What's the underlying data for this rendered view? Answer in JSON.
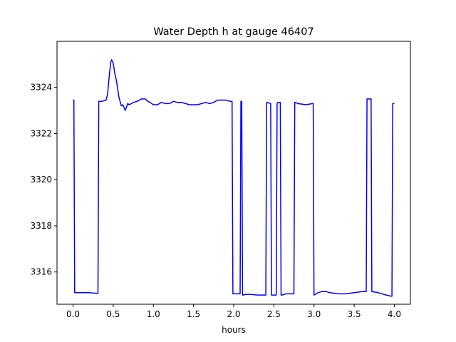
{
  "chart_data": {
    "type": "line",
    "title": "Water Depth h at gauge 46407",
    "xlabel": "hours",
    "ylabel": "",
    "xlim": [
      -0.2,
      4.2
    ],
    "ylim": [
      3314.6,
      3326.0
    ],
    "x_ticks": [
      0.0,
      0.5,
      1.0,
      1.5,
      2.0,
      2.5,
      3.0,
      3.5,
      4.0
    ],
    "x_tick_labels": [
      "0.0",
      "0.5",
      "1.0",
      "1.5",
      "2.0",
      "2.5",
      "3.0",
      "3.5",
      "4.0"
    ],
    "y_ticks": [
      3316,
      3318,
      3320,
      3322,
      3324
    ],
    "y_tick_labels": [
      "3316",
      "3318",
      "3320",
      "3322",
      "3324"
    ],
    "grid": false,
    "series": [
      {
        "color": "#0000ff",
        "x": [
          0.0,
          0.01,
          0.02,
          0.1,
          0.2,
          0.3,
          0.31,
          0.32,
          0.36,
          0.41,
          0.43,
          0.45,
          0.47,
          0.48,
          0.5,
          0.52,
          0.54,
          0.57,
          0.6,
          0.62,
          0.65,
          0.68,
          0.7,
          0.75,
          0.8,
          0.85,
          0.9,
          0.93,
          0.96,
          1.0,
          1.05,
          1.1,
          1.15,
          1.2,
          1.25,
          1.3,
          1.35,
          1.4,
          1.45,
          1.5,
          1.55,
          1.6,
          1.65,
          1.7,
          1.75,
          1.8,
          1.85,
          1.9,
          1.95,
          1.98,
          1.99,
          2.0,
          2.02,
          2.05,
          2.08,
          2.09,
          2.1,
          2.11,
          2.12,
          2.15,
          2.2,
          2.3,
          2.4,
          2.41,
          2.42,
          2.46,
          2.47,
          2.5,
          2.53,
          2.54,
          2.55,
          2.58,
          2.59,
          2.6,
          2.65,
          2.7,
          2.75,
          2.76,
          2.77,
          2.8,
          2.9,
          2.98,
          2.99,
          3.0,
          3.05,
          3.1,
          3.15,
          3.2,
          3.3,
          3.4,
          3.5,
          3.6,
          3.65,
          3.66,
          3.67,
          3.71,
          3.72,
          3.8,
          3.9,
          3.96,
          3.97,
          3.98,
          4.0
        ],
        "y": [
          3323.45,
          3323.45,
          3315.1,
          3315.1,
          3315.1,
          3315.07,
          3315.07,
          3323.4,
          3323.4,
          3323.45,
          3323.7,
          3324.5,
          3325.1,
          3325.2,
          3325.05,
          3324.6,
          3324.3,
          3323.6,
          3323.2,
          3323.25,
          3323.0,
          3323.3,
          3323.25,
          3323.35,
          3323.4,
          3323.5,
          3323.5,
          3323.4,
          3323.35,
          3323.25,
          3323.25,
          3323.35,
          3323.3,
          3323.3,
          3323.4,
          3323.35,
          3323.35,
          3323.3,
          3323.25,
          3323.25,
          3323.25,
          3323.3,
          3323.35,
          3323.3,
          3323.35,
          3323.45,
          3323.45,
          3323.45,
          3323.4,
          3323.4,
          3315.05,
          3315.05,
          3315.05,
          3315.05,
          3315.05,
          3323.4,
          3323.4,
          3315.0,
          3315.0,
          3315.03,
          3315.03,
          3315.0,
          3315.0,
          3323.35,
          3323.35,
          3323.3,
          3315.0,
          3315.0,
          3315.0,
          3323.3,
          3323.35,
          3323.35,
          3315.0,
          3315.0,
          3315.05,
          3315.05,
          3315.05,
          3323.35,
          3323.35,
          3323.3,
          3323.25,
          3323.3,
          3323.3,
          3315.0,
          3315.1,
          3315.15,
          3315.15,
          3315.1,
          3315.05,
          3315.05,
          3315.1,
          3315.15,
          3315.15,
          3323.5,
          3323.5,
          3323.5,
          3315.15,
          3315.1,
          3315.0,
          3314.95,
          3314.95,
          3323.3,
          3323.3
        ]
      }
    ]
  }
}
